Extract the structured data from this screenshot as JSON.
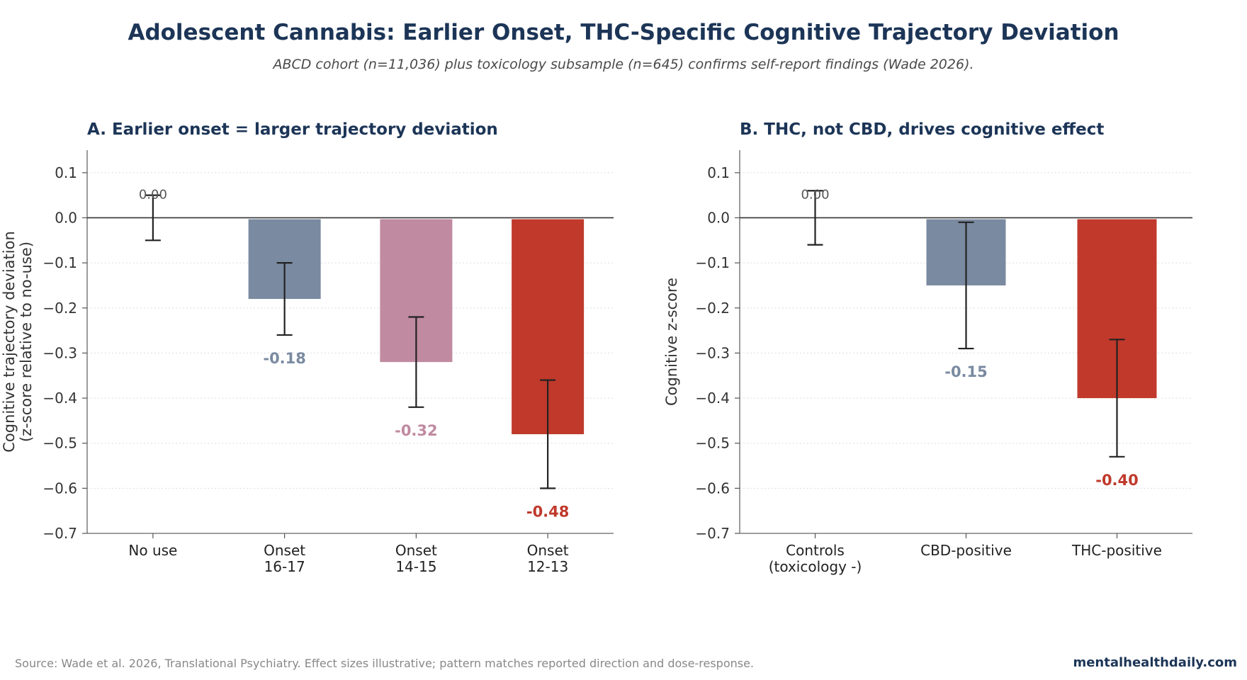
{
  "header": {
    "title": "Adolescent Cannabis: Earlier Onset, THC-Specific Cognitive Trajectory Deviation",
    "subtitle": "ABCD cohort (n=11,036) plus toxicology subsample (n=645) confirms self-report findings (Wade 2026)."
  },
  "footer": {
    "source": "Source: Wade et al. 2026, Translational Psychiatry. Effect sizes illustrative; pattern matches reported direction and dose-response.",
    "brand": "mentalhealthdaily.com"
  },
  "chart_data": [
    {
      "type": "bar",
      "title": "A. Earlier onset = larger trajectory deviation",
      "ylabel": "Cognitive trajectory deviation\n(z-score relative to no-use)",
      "ylim": [
        -0.7,
        0.15
      ],
      "yticks": [
        0.1,
        0.0,
        -0.1,
        -0.2,
        -0.3,
        -0.4,
        -0.5,
        -0.6,
        -0.7
      ],
      "ytick_labels": [
        "0.1",
        "0.0",
        "−0.1",
        "−0.2",
        "−0.3",
        "−0.4",
        "−0.5",
        "−0.6",
        "−0.7"
      ],
      "grid": true,
      "categories": [
        "No use",
        "Onset\n16-17",
        "Onset\n14-15",
        "Onset\n12-13"
      ],
      "values": [
        0.0,
        -0.18,
        -0.32,
        -0.48
      ],
      "error_low": [
        -0.05,
        -0.26,
        -0.42,
        -0.6
      ],
      "error_high": [
        0.05,
        -0.1,
        -0.22,
        -0.36
      ],
      "labels": [
        "0.00",
        "-0.18",
        "-0.32",
        "-0.48"
      ],
      "colors": [
        "#7a8aa0",
        "#7a8aa0",
        "#c08aa0",
        "#c0392b"
      ],
      "label_colors": [
        "#555555",
        "#7a8aa0",
        "#c08aa0",
        "#c0392b"
      ]
    },
    {
      "type": "bar",
      "title": "B. THC, not CBD, drives cognitive effect",
      "ylabel": "Cognitive z-score",
      "ylim": [
        -0.7,
        0.15
      ],
      "yticks": [
        0.1,
        0.0,
        -0.1,
        -0.2,
        -0.3,
        -0.4,
        -0.5,
        -0.6,
        -0.7
      ],
      "ytick_labels": [
        "0.1",
        "0.0",
        "−0.1",
        "−0.2",
        "−0.3",
        "−0.4",
        "−0.5",
        "−0.6",
        "−0.7"
      ],
      "grid": true,
      "categories": [
        "Controls\n(toxicology -)",
        "CBD-positive",
        "THC-positive"
      ],
      "values": [
        0.0,
        -0.15,
        -0.4
      ],
      "error_low": [
        -0.06,
        -0.29,
        -0.53
      ],
      "error_high": [
        0.06,
        -0.01,
        -0.27
      ],
      "labels": [
        "0.00",
        "-0.15",
        "-0.40"
      ],
      "colors": [
        "#7a8aa0",
        "#7a8aa0",
        "#c0392b"
      ],
      "label_colors": [
        "#555555",
        "#7a8aa0",
        "#c0392b"
      ]
    }
  ]
}
